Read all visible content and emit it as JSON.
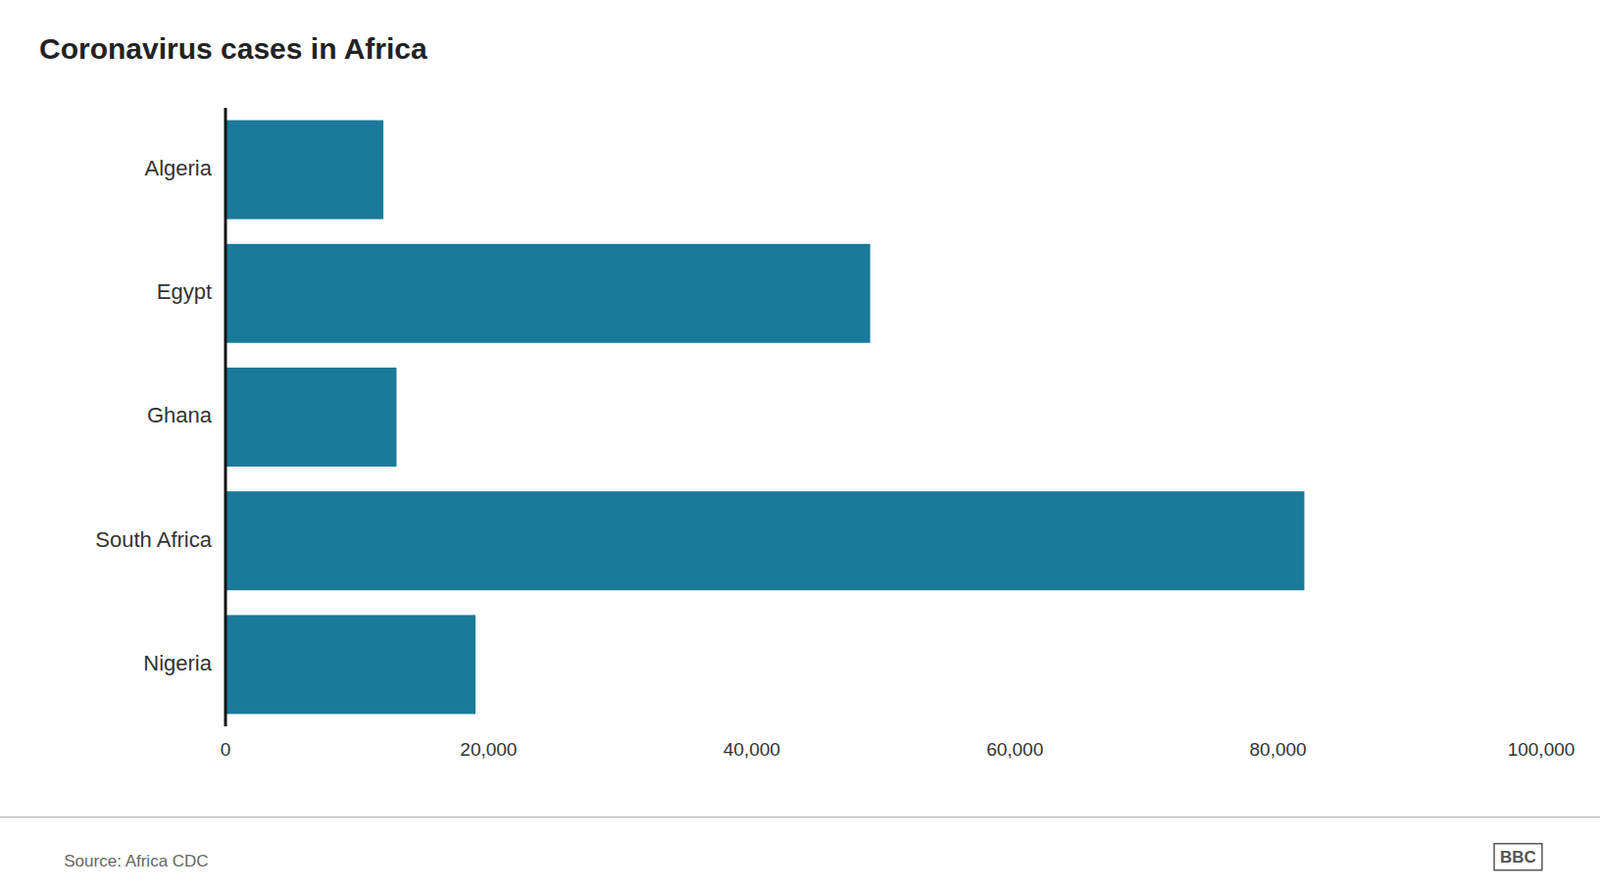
{
  "chart_data": {
    "type": "bar",
    "orientation": "horizontal",
    "title": "Coronavirus cases in Africa",
    "categories": [
      "Algeria",
      "Egypt",
      "Ghana",
      "South Africa",
      "Nigeria"
    ],
    "values": [
      12000,
      49000,
      13000,
      82000,
      19000
    ],
    "color": "#1a7a9a",
    "xlim": [
      0,
      100000
    ],
    "xticks": [
      0,
      {
        "value": 20000,
        "label": "20,000"
      },
      {
        "value": 40000,
        "label": "40,000"
      },
      {
        "value": 60000,
        "label": "60,000"
      },
      {
        "value": 80000,
        "label": "80,000"
      },
      {
        "value": 100000,
        "label": "100,000"
      }
    ],
    "grid": false,
    "annotations": [
      "Source: Africa CDC",
      "BBC"
    ]
  }
}
